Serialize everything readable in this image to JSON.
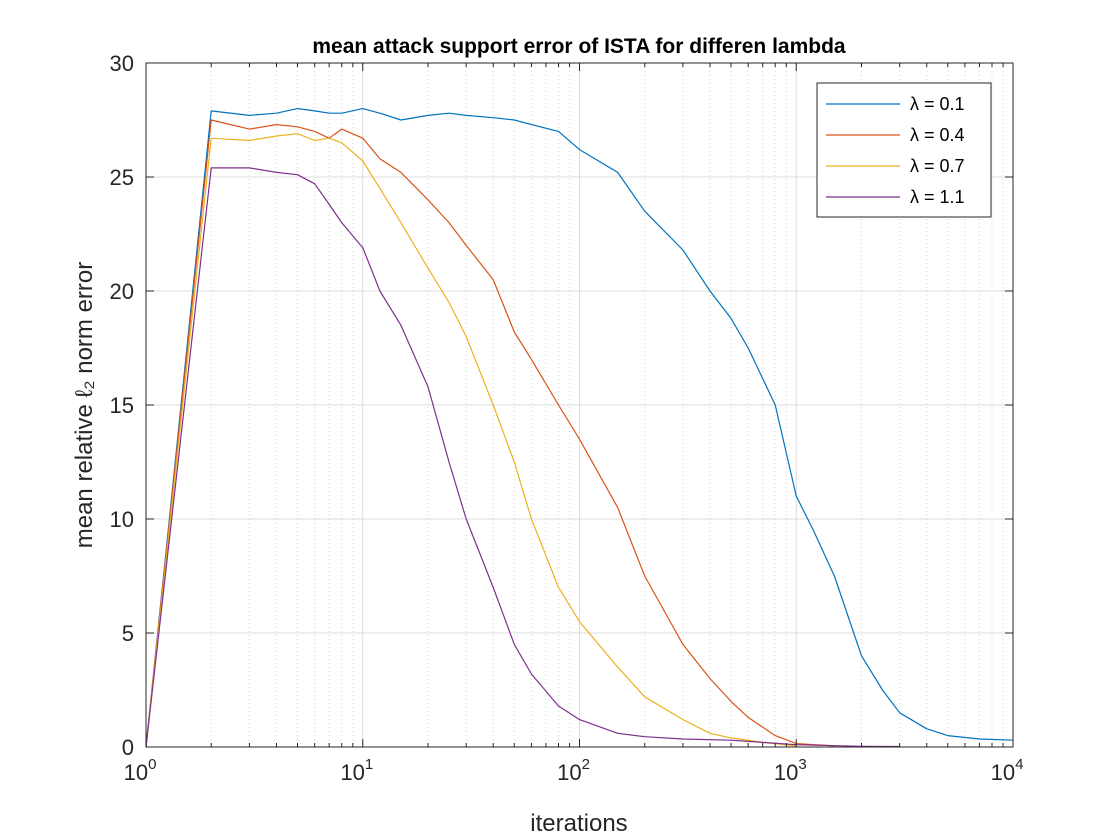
{
  "chart_data": {
    "type": "line",
    "title": "mean attack support error of ISTA for differen lambda",
    "xlabel": "iterations",
    "ylabel": "mean relative ℓ₂ norm error",
    "xscale": "log",
    "xlim": [
      1,
      10000
    ],
    "ylim": [
      0,
      30
    ],
    "yticks": [
      0,
      5,
      10,
      15,
      20,
      25,
      30
    ],
    "xticks": [
      {
        "base": "10",
        "exp": "0"
      },
      {
        "base": "10",
        "exp": "1"
      },
      {
        "base": "10",
        "exp": "2"
      },
      {
        "base": "10",
        "exp": "3"
      },
      {
        "base": "10",
        "exp": "4"
      }
    ],
    "grid": true,
    "legend_position": "top-right",
    "series": [
      {
        "name": "λ = 0.1",
        "color": "#0072BD",
        "x": [
          1,
          2,
          3,
          4,
          5,
          6,
          7,
          8,
          10,
          12,
          15,
          20,
          25,
          30,
          40,
          50,
          60,
          80,
          100,
          150,
          200,
          300,
          400,
          500,
          600,
          800,
          1000,
          1200,
          1500,
          2000,
          2500,
          3000,
          4000,
          5000,
          7000,
          10000
        ],
        "y": [
          0,
          27.9,
          27.7,
          27.8,
          28.0,
          27.9,
          27.8,
          27.8,
          28.0,
          27.8,
          27.5,
          27.7,
          27.8,
          27.7,
          27.6,
          27.5,
          27.3,
          27.0,
          26.2,
          25.2,
          23.5,
          21.8,
          20.0,
          18.8,
          17.5,
          15.0,
          11.0,
          9.5,
          7.5,
          4.0,
          2.5,
          1.5,
          0.8,
          0.5,
          0.35,
          0.3
        ]
      },
      {
        "name": "λ = 0.4",
        "color": "#D95319",
        "x": [
          1,
          2,
          3,
          4,
          5,
          6,
          7,
          8,
          10,
          12,
          15,
          20,
          25,
          30,
          40,
          50,
          60,
          80,
          100,
          150,
          200,
          300,
          400,
          500,
          600,
          800,
          1000,
          1500
        ],
        "y": [
          0,
          27.5,
          27.1,
          27.3,
          27.2,
          27.0,
          26.7,
          27.1,
          26.7,
          25.8,
          25.2,
          24.0,
          23.0,
          22.0,
          20.5,
          18.2,
          17.0,
          15.0,
          13.5,
          10.5,
          7.5,
          4.5,
          3.0,
          2.0,
          1.3,
          0.5,
          0.15,
          0.05
        ]
      },
      {
        "name": "λ = 0.7",
        "color": "#EDB120",
        "x": [
          1,
          2,
          3,
          4,
          5,
          6,
          7,
          8,
          10,
          12,
          15,
          20,
          25,
          30,
          40,
          50,
          60,
          80,
          100,
          150,
          200,
          300,
          400,
          500,
          700,
          1000
        ],
        "y": [
          0,
          26.7,
          26.6,
          26.8,
          26.9,
          26.6,
          26.7,
          26.5,
          25.7,
          24.5,
          23.0,
          21.0,
          19.5,
          18.0,
          15.0,
          12.5,
          10.0,
          7.0,
          5.5,
          3.5,
          2.2,
          1.2,
          0.6,
          0.4,
          0.2,
          0.05
        ]
      },
      {
        "name": "λ = 1.1",
        "color": "#7E2F8E",
        "x": [
          1,
          2,
          3,
          4,
          5,
          6,
          7,
          8,
          10,
          12,
          15,
          20,
          25,
          30,
          40,
          50,
          60,
          80,
          100,
          150,
          200,
          300,
          500,
          700,
          1000,
          2000,
          3000
        ],
        "y": [
          0,
          25.4,
          25.4,
          25.2,
          25.1,
          24.7,
          23.8,
          23.0,
          21.9,
          20.0,
          18.5,
          15.8,
          12.5,
          10.0,
          7.0,
          4.5,
          3.2,
          1.8,
          1.2,
          0.6,
          0.45,
          0.35,
          0.3,
          0.2,
          0.1,
          0.03,
          0.02
        ]
      }
    ]
  }
}
